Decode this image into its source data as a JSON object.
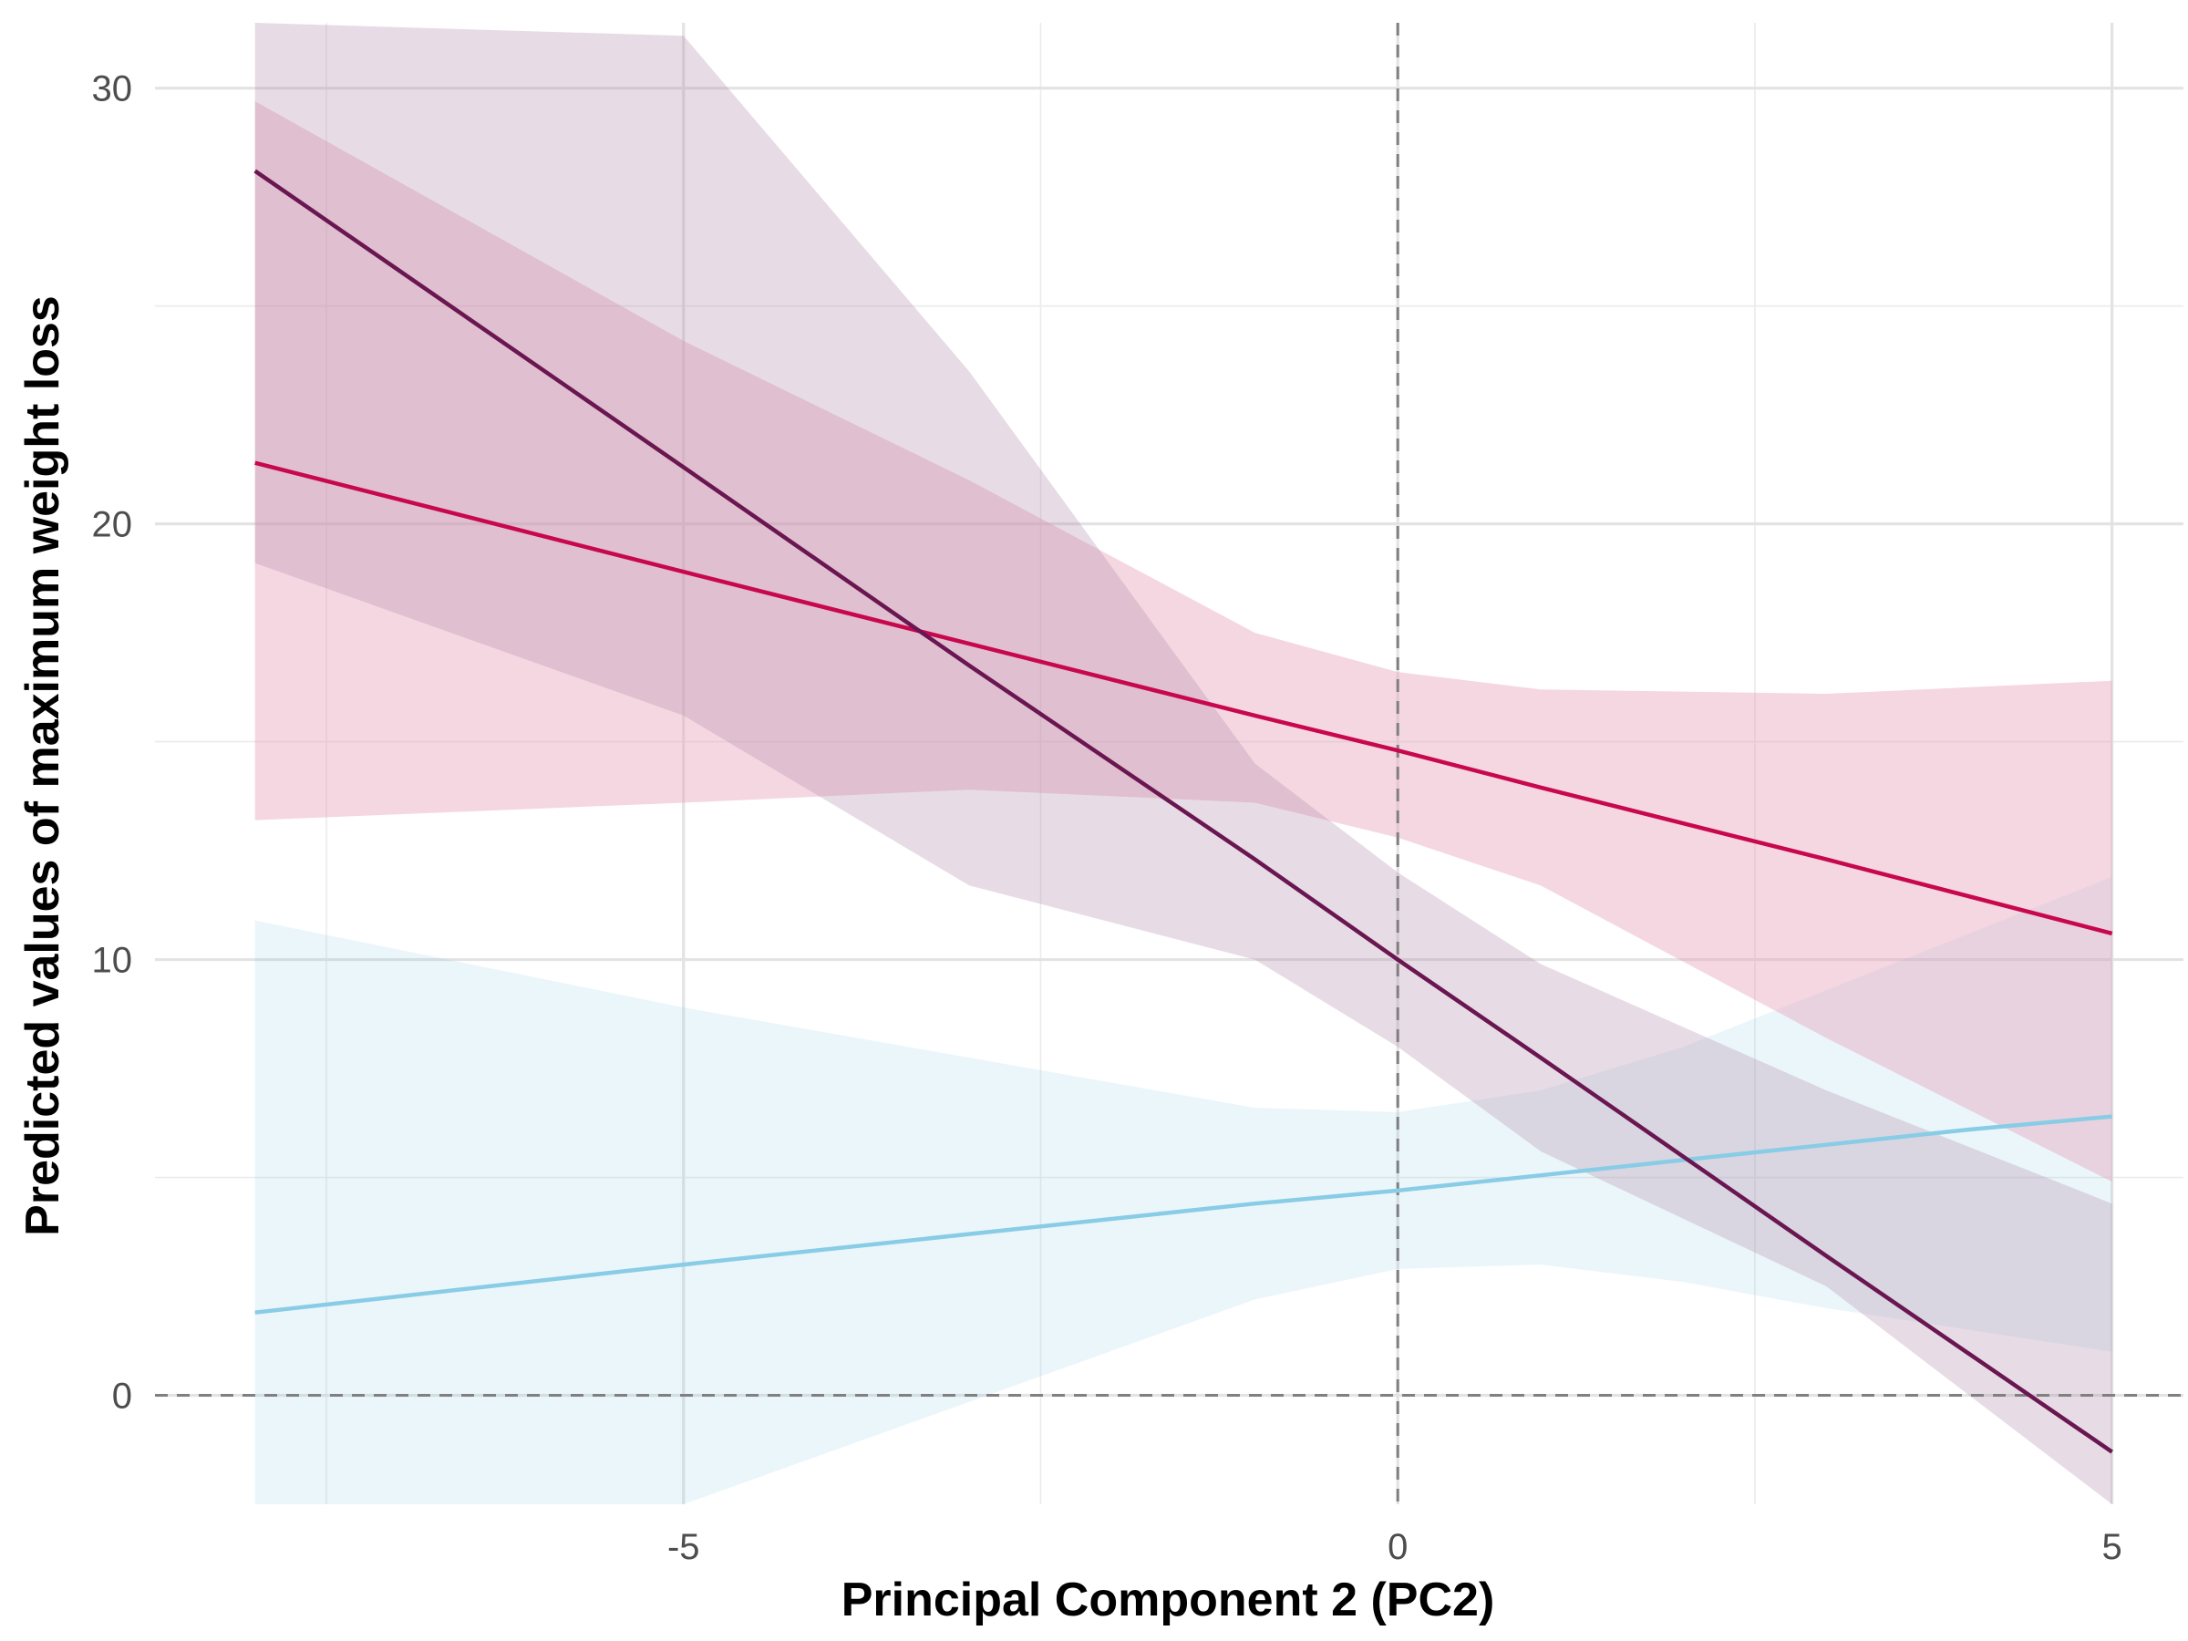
{
  "chart_data": {
    "type": "line",
    "title": "",
    "xlabel": "Principal Component 2 (PC2)",
    "ylabel": "Predicted values of maximum weight loss",
    "xlim": [
      -8.7,
      5.5
    ],
    "ylim": [
      -2.5,
      31.5
    ],
    "x_ticks": [
      -5,
      0,
      5
    ],
    "x_tick_labels": [
      "-5",
      "0",
      "5"
    ],
    "y_ticks": [
      0,
      10,
      20,
      30
    ],
    "y_tick_labels": [
      "0",
      "10",
      "20",
      "30"
    ],
    "x_minor_grid": [
      -7.5,
      -2.5,
      2.5
    ],
    "y_minor_grid": [
      5,
      15,
      25
    ],
    "grid": true,
    "reference_lines": {
      "x": 0,
      "y": 0,
      "style": "dashed",
      "color": "#808080"
    },
    "legend": "none",
    "series": [
      {
        "color": "#88cce6",
        "band_color": "#88cce6",
        "band_opacity": 0.17,
        "x": [
          -8,
          -5,
          -1,
          0,
          1,
          2,
          3,
          4,
          5
        ],
        "y": [
          1.9,
          3.0,
          4.4,
          4.7,
          5.05,
          5.4,
          5.75,
          6.1,
          6.4
        ],
        "lower": [
          -2.6,
          -2.5,
          2.2,
          2.9,
          3.0,
          2.6,
          2.0,
          1.5,
          1.0
        ],
        "upper": [
          10.9,
          8.9,
          6.6,
          6.5,
          7.0,
          8.0,
          9.3,
          10.6,
          11.9
        ]
      },
      {
        "color": "#c8084d",
        "band_color": "#e8a0b8",
        "band_opacity": 0.42,
        "x": [
          -8,
          -5,
          -3,
          -1,
          0,
          1,
          3,
          5
        ],
        "y": [
          21.4,
          18.9,
          17.25,
          15.6,
          14.8,
          13.95,
          12.3,
          10.6
        ],
        "lower": [
          13.2,
          13.6,
          13.9,
          13.6,
          12.8,
          11.7,
          8.2,
          4.9
        ],
        "upper": [
          29.7,
          24.2,
          21.0,
          17.5,
          16.6,
          16.2,
          16.1,
          16.4
        ]
      },
      {
        "color": "#6a1650",
        "band_color": "#b08aa8",
        "band_opacity": 0.3,
        "x": [
          -8,
          -5,
          -3,
          -1,
          0,
          1,
          3,
          5
        ],
        "y": [
          28.1,
          21.3,
          16.75,
          12.3,
          10.0,
          7.75,
          3.2,
          -1.3
        ],
        "lower": [
          19.1,
          15.6,
          11.7,
          10.0,
          8.0,
          5.6,
          2.5,
          -2.6
        ],
        "upper": [
          32.0,
          31.2,
          23.5,
          14.5,
          12.0,
          9.9,
          7.0,
          4.4
        ]
      }
    ]
  }
}
